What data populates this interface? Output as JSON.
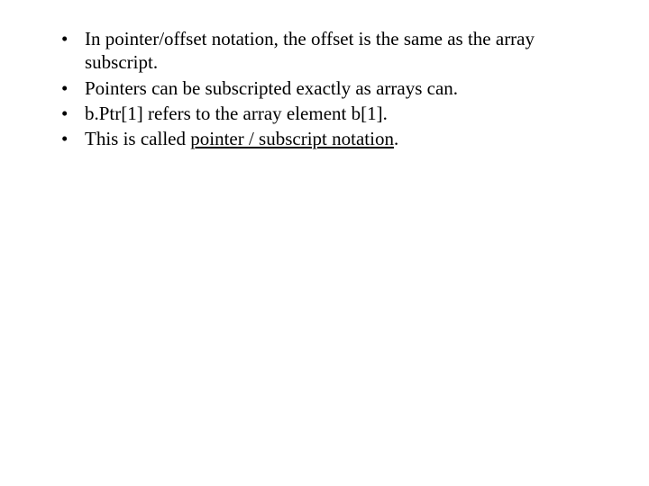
{
  "bullets": [
    {
      "prefix": "In pointer/offset notation, the offset is the same as the array subscript.",
      "emph": "",
      "suffix": ""
    },
    {
      "prefix": "Pointers can be subscripted exactly as arrays can.",
      "emph": "",
      "suffix": ""
    },
    {
      "prefix": "b.Ptr[1]  refers to the array element b[1].",
      "emph": "",
      "suffix": ""
    },
    {
      "prefix": "This is called ",
      "emph": "pointer / subscript notation",
      "suffix": "."
    }
  ]
}
